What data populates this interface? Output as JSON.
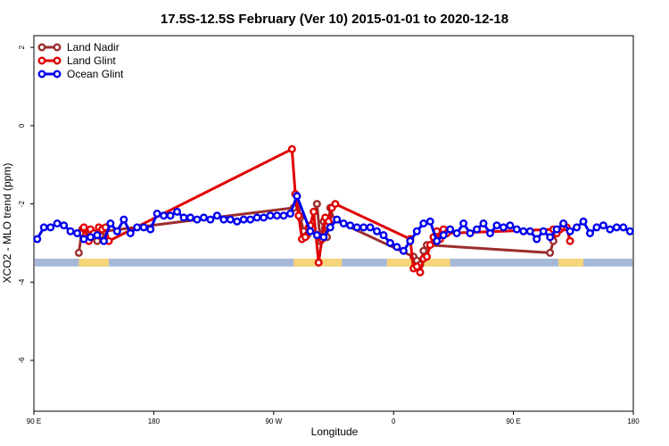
{
  "chart_data": {
    "type": "line",
    "title": "17.5S-12.5S February (Ver 10)   2015-01-01 to 2020-12-18",
    "xlabel": "Longitude",
    "ylabel": "XCO2 - MLO trend (ppm)",
    "xlim": [
      0,
      360
    ],
    "ylim": [
      -7.3,
      2.3
    ],
    "x_ticks": [
      {
        "x": 0,
        "label": "90 E"
      },
      {
        "x": 72,
        "label": "180"
      },
      {
        "x": 144,
        "label": "90 W"
      },
      {
        "x": 216,
        "label": "0"
      },
      {
        "x": 288,
        "label": "90 E"
      },
      {
        "x": 360,
        "label": "180"
      }
    ],
    "y_ticks": [
      2,
      0,
      -2,
      -4,
      -6
    ],
    "legend_position": "top-left",
    "grid": false,
    "land_band": {
      "ymin": -3.6,
      "ymax": -3.4,
      "ocean_color": "#a5b8d8",
      "land_color": "#f5d57a",
      "land_segments": [
        [
          27,
          45
        ],
        [
          156,
          185
        ],
        [
          212,
          250
        ],
        [
          315,
          330
        ]
      ]
    },
    "series": [
      {
        "name": "Land Nadir",
        "color": "#9b2d2d",
        "x": [
          27,
          29,
          31,
          33,
          38,
          40,
          42,
          156,
          158,
          160,
          162,
          164,
          170,
          172,
          174,
          176,
          178,
          180,
          228,
          230,
          232,
          234,
          236,
          310,
          312,
          314
        ],
        "y": [
          -3.25,
          -2.65,
          -2.75,
          -2.85,
          -2.95,
          -2.8,
          -2.7,
          -2.1,
          -1.8,
          -2.35,
          -2.7,
          -2.8,
          -2.0,
          -2.95,
          -2.45,
          -2.85,
          -2.1,
          -2.4,
          -3.35,
          -3.45,
          -3.55,
          -3.2,
          -3.05,
          -3.25,
          -2.95,
          -2.75
        ]
      },
      {
        "name": "Land Glint",
        "color": "#e00000",
        "x": [
          28,
          30,
          33,
          34,
          36,
          39,
          41,
          43,
          45,
          155,
          157,
          159,
          161,
          163,
          165,
          166,
          168,
          171,
          173,
          175,
          177,
          179,
          181,
          226,
          228,
          230,
          232,
          234,
          236,
          238,
          240,
          242,
          244,
          246,
          248,
          312,
          314,
          316,
          318,
          320,
          322
        ],
        "y": [
          -2.75,
          -2.6,
          -2.95,
          -2.65,
          -2.75,
          -2.6,
          -2.65,
          -2.6,
          -2.95,
          -0.6,
          -1.75,
          -2.3,
          -2.9,
          -2.85,
          -2.6,
          -2.55,
          -2.2,
          -3.5,
          -2.9,
          -2.35,
          -2.45,
          -2.1,
          -2.0,
          -2.9,
          -3.65,
          -3.6,
          -3.75,
          -3.4,
          -3.35,
          -3.05,
          -2.85,
          -2.7,
          -2.9,
          -2.65,
          -2.75,
          -2.65,
          -2.75,
          -2.65,
          -2.6,
          -2.6,
          -2.95
        ]
      },
      {
        "name": "Ocean Glint",
        "color": "#0000ee",
        "x": [
          2,
          6,
          10,
          14,
          18,
          22,
          26,
          30,
          34,
          38,
          42,
          46,
          50,
          54,
          58,
          62,
          66,
          70,
          74,
          78,
          82,
          86,
          90,
          94,
          98,
          102,
          106,
          110,
          114,
          118,
          122,
          126,
          130,
          134,
          138,
          142,
          146,
          150,
          154,
          158,
          166,
          170,
          174,
          178,
          182,
          186,
          190,
          194,
          198,
          202,
          206,
          210,
          214,
          218,
          222,
          226,
          230,
          234,
          238,
          242,
          246,
          250,
          254,
          258,
          262,
          266,
          270,
          274,
          278,
          282,
          286,
          290,
          294,
          298,
          302,
          306,
          310,
          314,
          318,
          322,
          326,
          330,
          334,
          338,
          342,
          346,
          350,
          354,
          358
        ],
        "y": [
          -2.9,
          -2.6,
          -2.6,
          -2.5,
          -2.55,
          -2.7,
          -2.75,
          -2.9,
          -2.85,
          -2.8,
          -2.95,
          -2.5,
          -2.7,
          -2.4,
          -2.75,
          -2.6,
          -2.6,
          -2.65,
          -2.25,
          -2.3,
          -2.3,
          -2.2,
          -2.35,
          -2.35,
          -2.4,
          -2.35,
          -2.4,
          -2.3,
          -2.4,
          -2.4,
          -2.45,
          -2.4,
          -2.4,
          -2.35,
          -2.35,
          -2.3,
          -2.3,
          -2.3,
          -2.25,
          -1.8,
          -2.7,
          -2.8,
          -2.85,
          -2.6,
          -2.4,
          -2.5,
          -2.55,
          -2.6,
          -2.6,
          -2.6,
          -2.7,
          -2.8,
          -3.0,
          -3.1,
          -3.2,
          -2.95,
          -2.7,
          -2.5,
          -2.45,
          -2.95,
          -2.8,
          -2.65,
          -2.75,
          -2.5,
          -2.75,
          -2.65,
          -2.5,
          -2.75,
          -2.55,
          -2.6,
          -2.55,
          -2.65,
          -2.7,
          -2.7,
          -2.9,
          -2.7,
          -2.85,
          -2.65,
          -2.5,
          -2.7,
          -2.6,
          -2.45,
          -2.75,
          -2.6,
          -2.55,
          -2.65,
          -2.6,
          -2.6,
          -2.7
        ]
      }
    ]
  }
}
